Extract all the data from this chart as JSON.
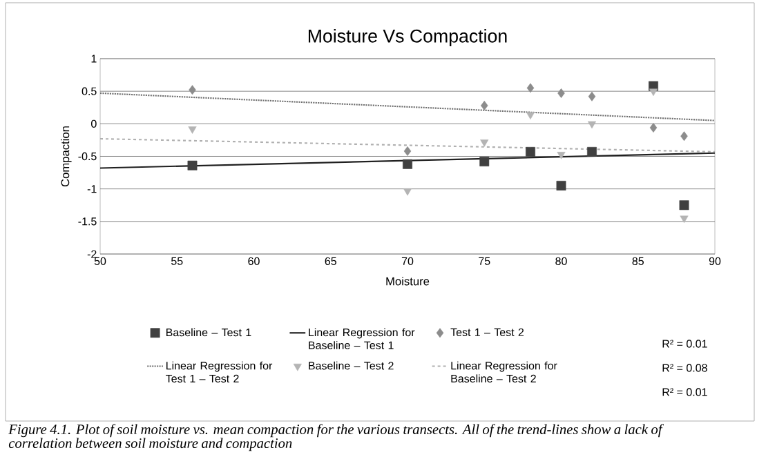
{
  "chart_data": {
    "type": "scatter",
    "title": "Moisture Vs Compaction",
    "xlabel": "Moisture",
    "ylabel": "Compaction",
    "xlim": [
      50,
      90
    ],
    "ylim": [
      -2,
      1
    ],
    "xticks": [
      50,
      55,
      60,
      65,
      70,
      75,
      80,
      85,
      90
    ],
    "yticks": [
      -2,
      -1.5,
      -1,
      -0.5,
      0,
      0.5,
      1
    ],
    "grid": "y",
    "legend": "bottom",
    "series": [
      {
        "name": "Baseline – Test 1",
        "marker": "square",
        "color": "#404040",
        "x": [
          56,
          70,
          75,
          78,
          80,
          82,
          86,
          88
        ],
        "values": [
          -0.64,
          -0.62,
          -0.58,
          -0.43,
          -0.95,
          -0.43,
          0.58,
          -1.25
        ]
      },
      {
        "name": "Linear Regression for Baseline – Test 1",
        "type": "line",
        "line_style": "solid",
        "color": "#202020",
        "x": [
          50,
          90
        ],
        "values": [
          -0.68,
          -0.45
        ]
      },
      {
        "name": "Test 1 – Test 2",
        "marker": "diamond",
        "color": "#8c8c8c",
        "x": [
          56,
          70,
          75,
          78,
          80,
          82,
          86,
          88
        ],
        "values": [
          0.52,
          -0.42,
          0.28,
          0.55,
          0.47,
          0.42,
          -0.06,
          -0.19
        ]
      },
      {
        "name": "Linear Regression for Test 1 – Test 2",
        "type": "line",
        "line_style": "dotted",
        "color": "#707070",
        "x": [
          50,
          90
        ],
        "values": [
          0.47,
          0.05
        ]
      },
      {
        "name": "Baseline – Test 2",
        "marker": "triangle",
        "color": "#b4b4b4",
        "x": [
          56,
          70,
          75,
          78,
          80,
          82,
          86,
          88
        ],
        "values": [
          -0.08,
          -1.03,
          -0.28,
          0.14,
          -0.47,
          0.0,
          0.5,
          -1.45
        ]
      },
      {
        "name": "Linear Regression for Baseline – Test 2",
        "type": "line",
        "line_style": "dashed",
        "color": "#b0b0b0",
        "x": [
          50,
          90
        ],
        "values": [
          -0.23,
          -0.43
        ]
      }
    ],
    "annotations": [
      "R² = 0.01",
      "R² = 0.08",
      "R² = 0.01",
      "Figure 4.1. Plot of soil moisture vs. mean compaction for the various transects. All of the trend-lines show a lack of correlation between soil moisture and compaction"
    ]
  }
}
